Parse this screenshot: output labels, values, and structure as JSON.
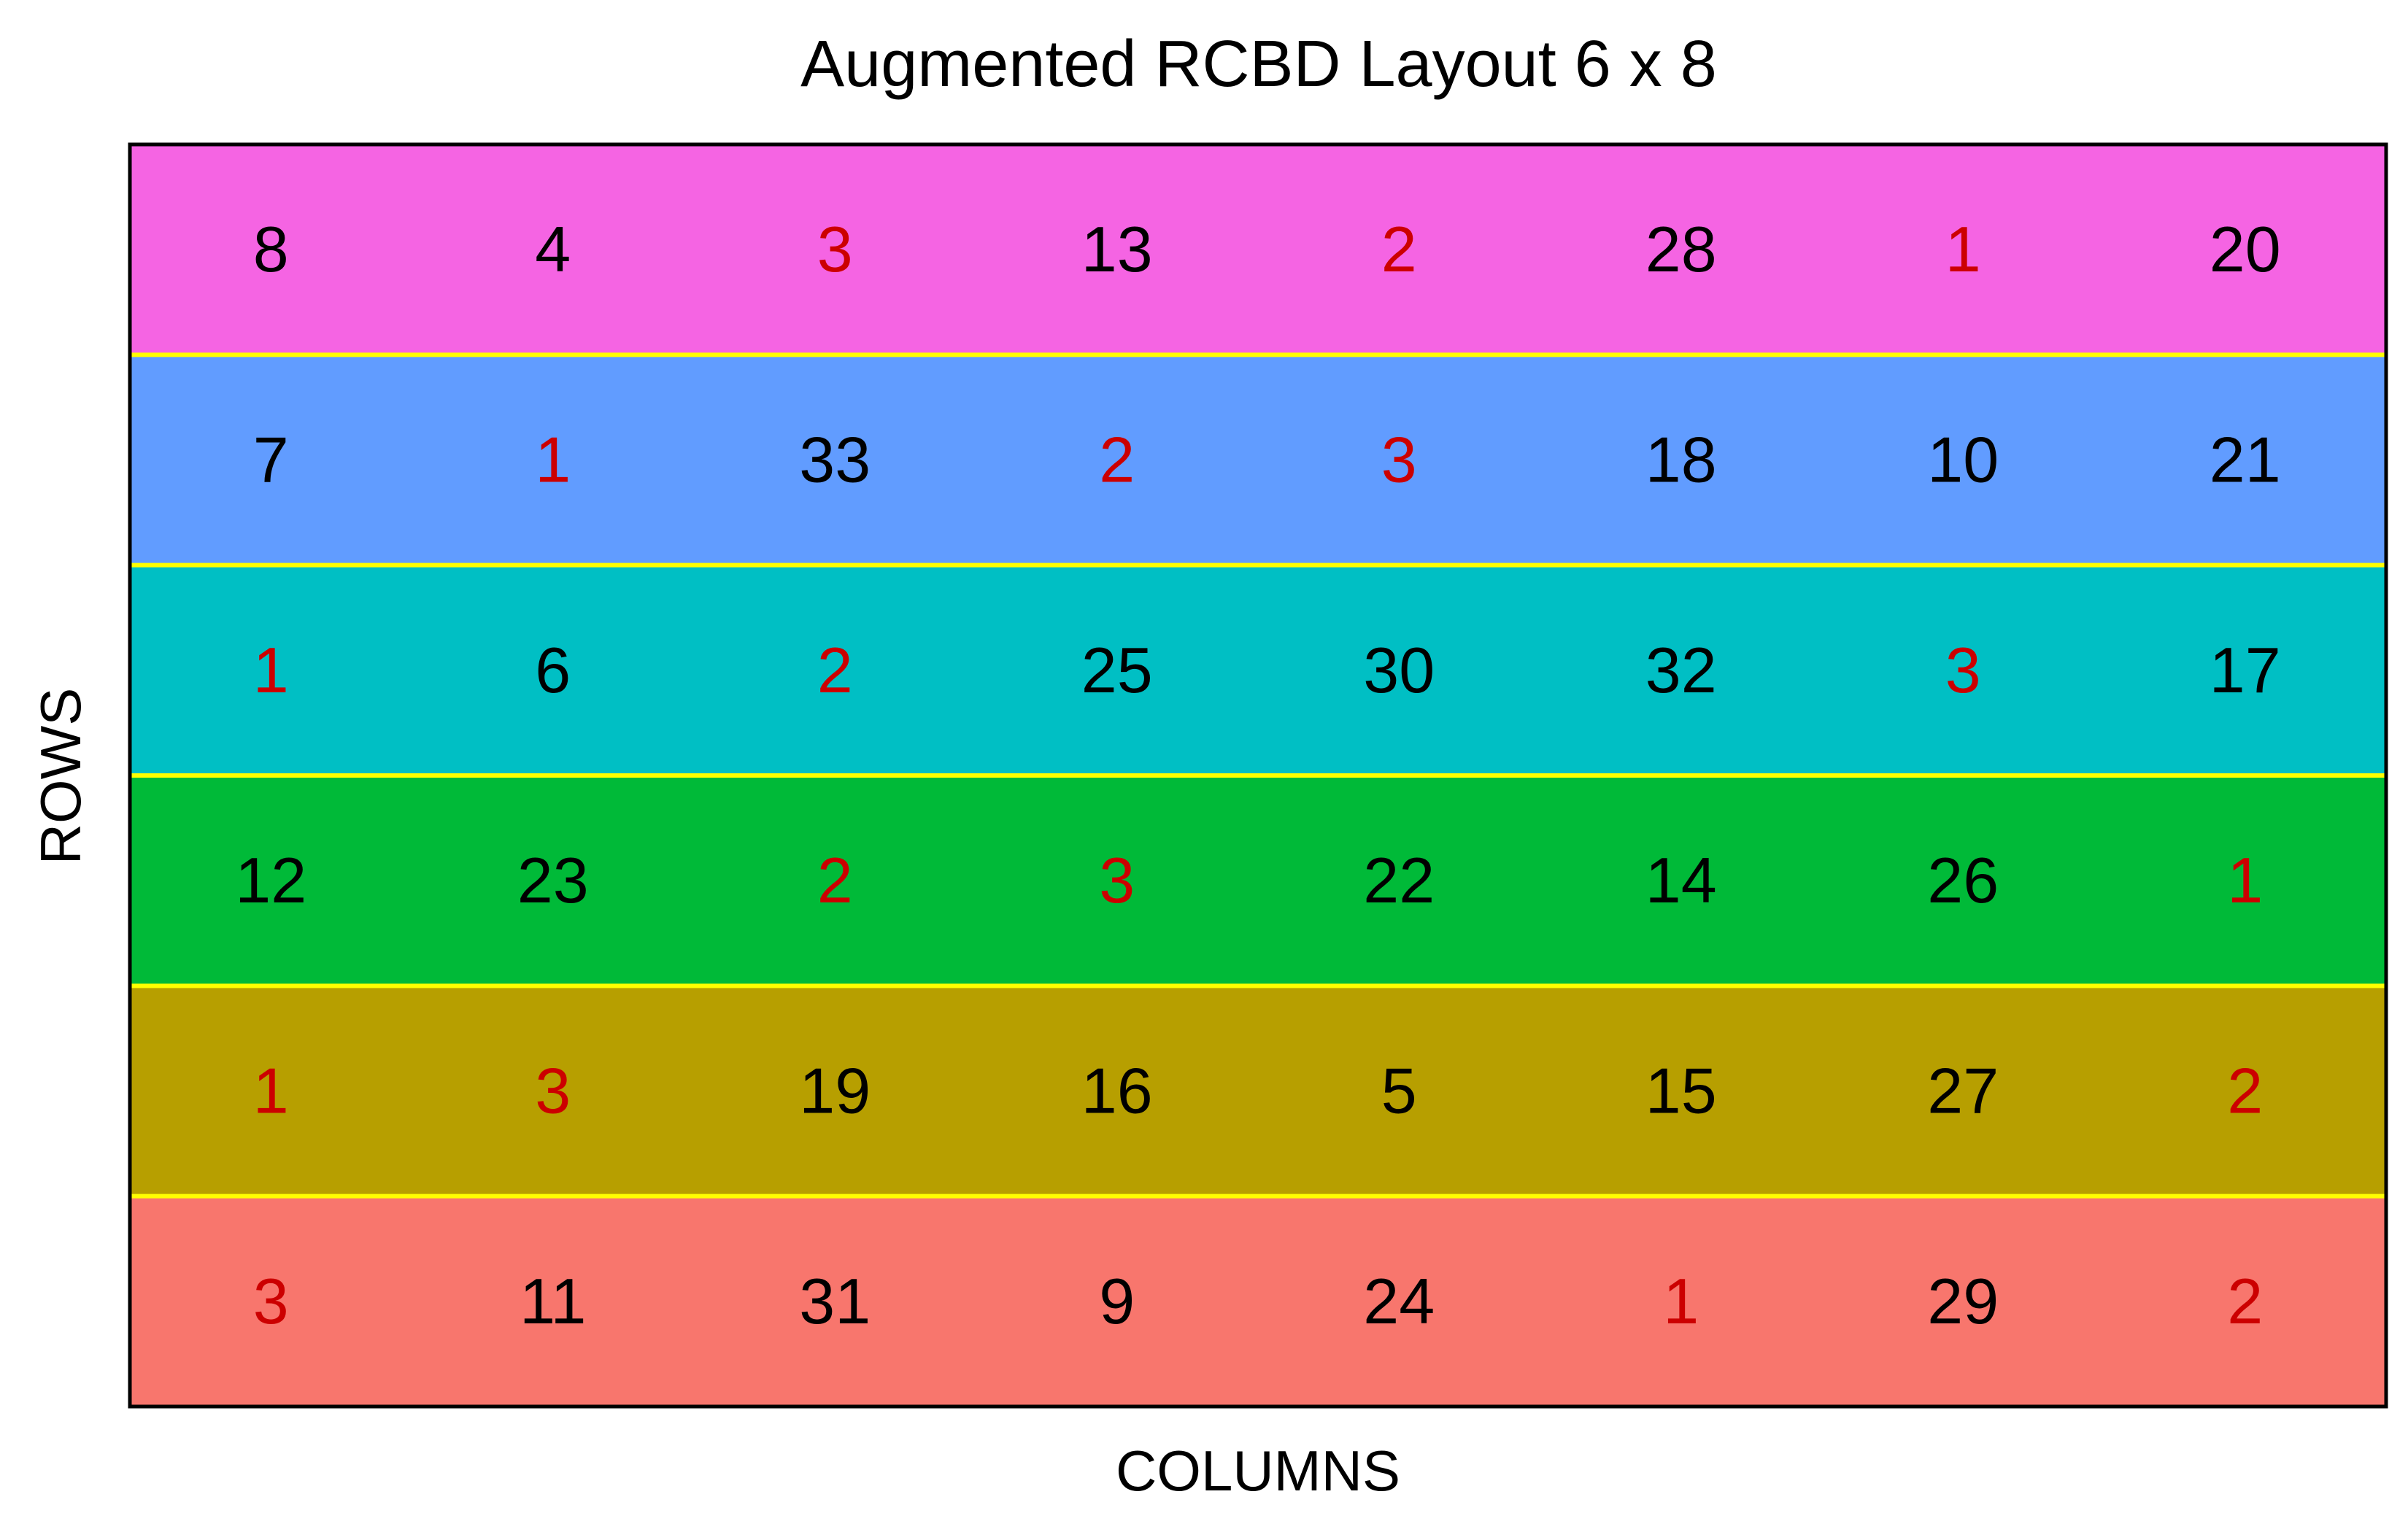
{
  "chart_data": {
    "type": "heatmap",
    "title": "Augmented RCBD Layout 6 x 8",
    "xlabel": "COLUMNS",
    "ylabel": "ROWS",
    "n_rows": 6,
    "n_cols": 8,
    "grid": false,
    "separator_color": "#ffff00",
    "check_color": "#cc0000",
    "entry_color": "#000000",
    "checks": [
      1,
      2,
      3
    ],
    "rows": [
      {
        "color": "#f564e3",
        "values": [
          8,
          4,
          3,
          13,
          2,
          28,
          1,
          20
        ]
      },
      {
        "color": "#619cff",
        "values": [
          7,
          1,
          33,
          2,
          3,
          18,
          10,
          21
        ]
      },
      {
        "color": "#00bfc4",
        "values": [
          1,
          6,
          2,
          25,
          30,
          32,
          3,
          17
        ]
      },
      {
        "color": "#00ba38",
        "values": [
          12,
          23,
          2,
          3,
          22,
          14,
          26,
          1
        ]
      },
      {
        "color": "#b79f00",
        "values": [
          1,
          3,
          19,
          16,
          5,
          15,
          27,
          2
        ]
      },
      {
        "color": "#f8766d",
        "values": [
          3,
          11,
          31,
          9,
          24,
          1,
          29,
          2
        ]
      }
    ]
  }
}
